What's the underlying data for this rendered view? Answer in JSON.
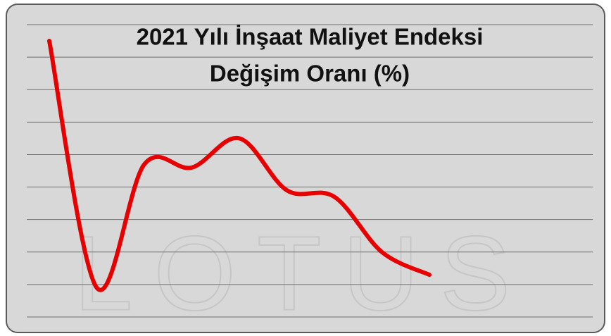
{
  "chart_data": {
    "type": "line",
    "title": [
      "2021 Yılı İnşaat Maliyet Endeksi",
      "Değişim Oranı (%)"
    ],
    "watermark": "LOTUS",
    "categories": [
      null,
      null,
      null,
      null,
      null,
      null,
      null,
      null,
      null
    ],
    "series": [
      {
        "name": null,
        "color": "#e60000",
        "values": [
          8.5,
          0.9,
          4.7,
          4.6,
          5.5,
          3.9,
          3.7,
          2.0,
          1.3
        ]
      }
    ],
    "ylim": [
      0,
      9
    ],
    "yticks": [
      0,
      1,
      2,
      3,
      4,
      5,
      6,
      7,
      8,
      9
    ],
    "grid": true
  }
}
